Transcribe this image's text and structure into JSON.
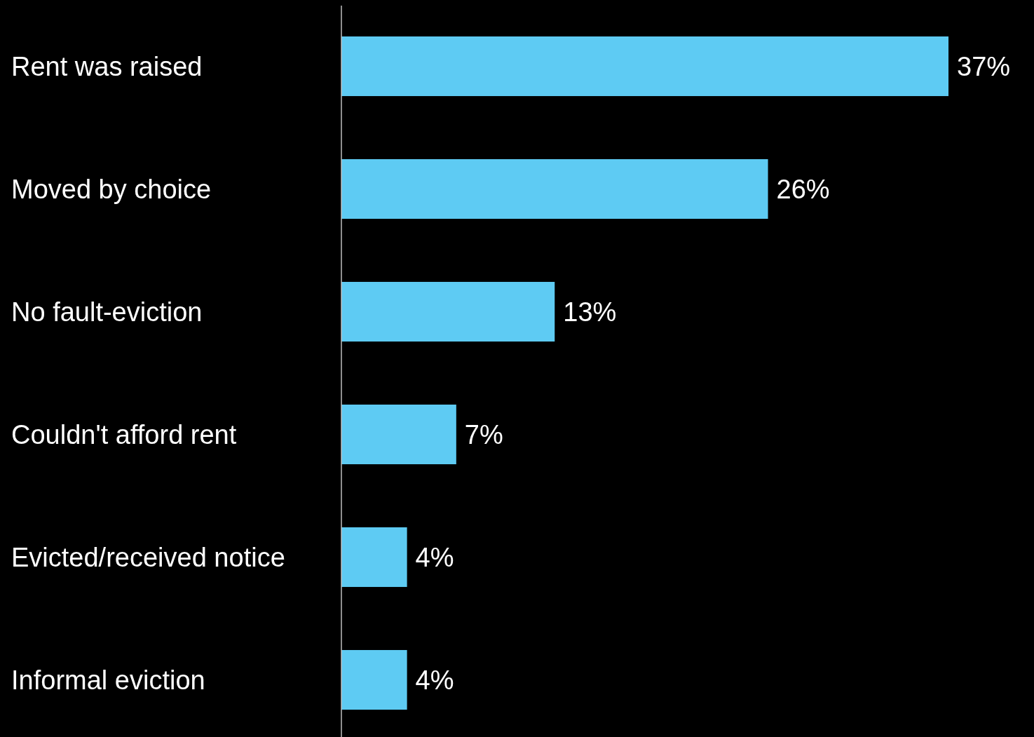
{
  "chart_data": {
    "type": "bar",
    "orientation": "horizontal",
    "categories": [
      "Rent was raised",
      "Moved by choice",
      "No fault-eviction",
      "Couldn't afford rent",
      "Evicted/received notice",
      "Informal eviction"
    ],
    "values": [
      37,
      26,
      13,
      7,
      4,
      4
    ],
    "value_labels": [
      "37%",
      "26%",
      "13%",
      "7%",
      "4%",
      "4%"
    ],
    "color": "#5ecbf3"
  }
}
